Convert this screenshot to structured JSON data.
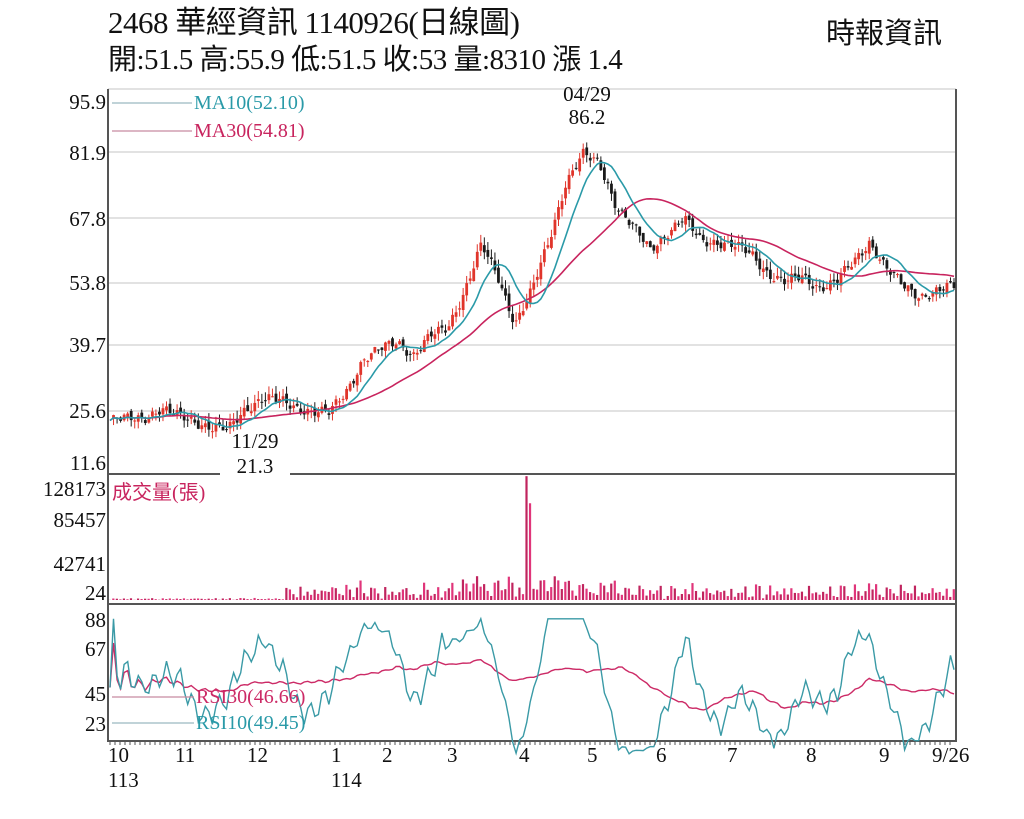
{
  "header": {
    "title": "2468  華經資訊 1140926(日線圖)",
    "summary": "開:51.5 高:55.9 低:51.5 收:53 量:8310 漲 1.4",
    "source": "時報資訊"
  },
  "colors": {
    "up": "#e0352b",
    "down": "#1a1a1a",
    "ma10": "#2a9aa8",
    "ma30": "#c8245e",
    "volume": "#e0357a",
    "rsi30": "#cc2a66",
    "rsi10": "#3a9aa6",
    "grid": "#bbbbbb",
    "frame": "#555555"
  },
  "price_panel": {
    "y_ticks": [
      "95.9",
      "81.9",
      "67.8",
      "53.8",
      "39.7",
      "25.6",
      "11.6"
    ],
    "legend": {
      "ma10": "MA10(52.10)",
      "ma30": "MA30(54.81)"
    },
    "annotations": {
      "high": {
        "date": "04/29",
        "value": "86.2"
      },
      "low": {
        "date": "11/29",
        "value": "21.3"
      }
    }
  },
  "volume_panel": {
    "label": "成交量(張)",
    "y_ticks": [
      "128173",
      "85457",
      "42741",
      "24"
    ]
  },
  "rsi_panel": {
    "y_ticks": [
      "88",
      "67",
      "45",
      "23"
    ],
    "legend": {
      "rsi30": "RSI30(46.66)",
      "rsi10": "RSI10(49.45)"
    }
  },
  "x_axis": {
    "months": [
      "10",
      "11",
      "12",
      "1",
      "2",
      "3",
      "4",
      "5",
      "6",
      "7",
      "8",
      "9",
      "9/26"
    ],
    "years": [
      "113",
      "114"
    ]
  },
  "chart_data": {
    "type": "candlestick",
    "title": "2468 華經資訊 1140926(日線圖)",
    "ohlc_last": {
      "open": 51.5,
      "high": 55.9,
      "low": 51.5,
      "close": 53,
      "volume": 8310,
      "change": 1.4
    },
    "x": [
      "113/10",
      "11",
      "12",
      "114/1",
      "2",
      "3",
      "4",
      "5",
      "6",
      "7",
      "8",
      "9",
      "9/26"
    ],
    "price_ylim": [
      11.6,
      95.9
    ],
    "price_ticks": [
      95.9,
      81.9,
      67.8,
      53.8,
      39.7,
      25.6,
      11.6
    ],
    "close_approx": [
      23.5,
      23.8,
      24.2,
      26,
      24.5,
      23.5,
      22,
      21.3,
      26,
      28.5,
      27.8,
      26.5,
      25.6,
      25,
      30,
      37,
      39,
      41,
      38,
      42,
      44,
      52,
      62,
      55,
      45,
      52,
      63,
      76,
      82,
      80,
      71,
      66,
      61,
      65,
      68,
      63,
      63,
      62,
      60,
      56,
      54,
      55,
      53,
      54,
      58,
      63,
      57,
      53,
      51,
      52,
      53
    ],
    "series": [
      {
        "name": "MA10",
        "last": 52.1
      },
      {
        "name": "MA30",
        "last": 54.81
      },
      {
        "name": "RSI30",
        "last": 46.66
      },
      {
        "name": "RSI10",
        "last": 49.45
      }
    ],
    "volume_ticks": [
      128173,
      85457,
      42741,
      24
    ],
    "volume_peak": 128173,
    "rsi_ticks": [
      88,
      67,
      45,
      23
    ],
    "annotations": [
      {
        "date": "04/29",
        "value": 86.2,
        "type": "high"
      },
      {
        "date": "11/29",
        "value": 21.3,
        "type": "low"
      }
    ],
    "legend_position": "top-left"
  }
}
